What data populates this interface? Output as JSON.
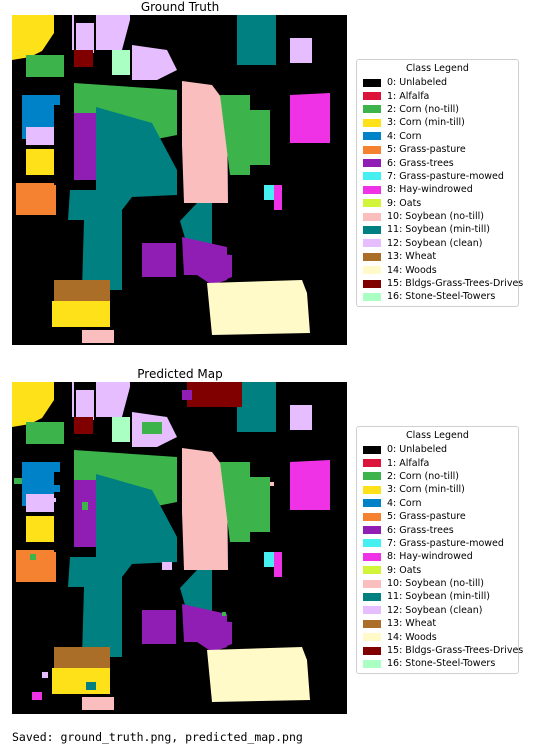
{
  "figures": [
    {
      "title": "Ground Truth"
    },
    {
      "title": "Predicted Map"
    }
  ],
  "legend": {
    "title": "Class Legend",
    "items": [
      {
        "label": "0: Unlabeled",
        "color": "#000000"
      },
      {
        "label": "1: Alfalfa",
        "color": "#dc143c"
      },
      {
        "label": "2: Corn (no-till)",
        "color": "#3cb44b"
      },
      {
        "label": "3: Corn (min-till)",
        "color": "#ffe119"
      },
      {
        "label": "4: Corn",
        "color": "#0082c8"
      },
      {
        "label": "5: Grass-pasture",
        "color": "#f58231"
      },
      {
        "label": "6: Grass-trees",
        "color": "#911eb4"
      },
      {
        "label": "7: Grass-pasture-mowed",
        "color": "#46f0f0"
      },
      {
        "label": "8: Hay-windrowed",
        "color": "#f032e6"
      },
      {
        "label": "9: Oats",
        "color": "#d2f53c"
      },
      {
        "label": "10: Soybean (no-till)",
        "color": "#fabebe"
      },
      {
        "label": "11: Soybean (min-till)",
        "color": "#008080"
      },
      {
        "label": "12: Soybean (clean)",
        "color": "#e6beff"
      },
      {
        "label": "13: Wheat",
        "color": "#aa6e28"
      },
      {
        "label": "14: Woods",
        "color": "#fffac8"
      },
      {
        "label": "15: Bldgs-Grass-Trees-Drives",
        "color": "#800000"
      },
      {
        "label": "16: Stone-Steel-Towers",
        "color": "#aaffc3"
      }
    ]
  },
  "output": {
    "saved_line": "Saved: ground_truth.png, predicted_map.png"
  }
}
